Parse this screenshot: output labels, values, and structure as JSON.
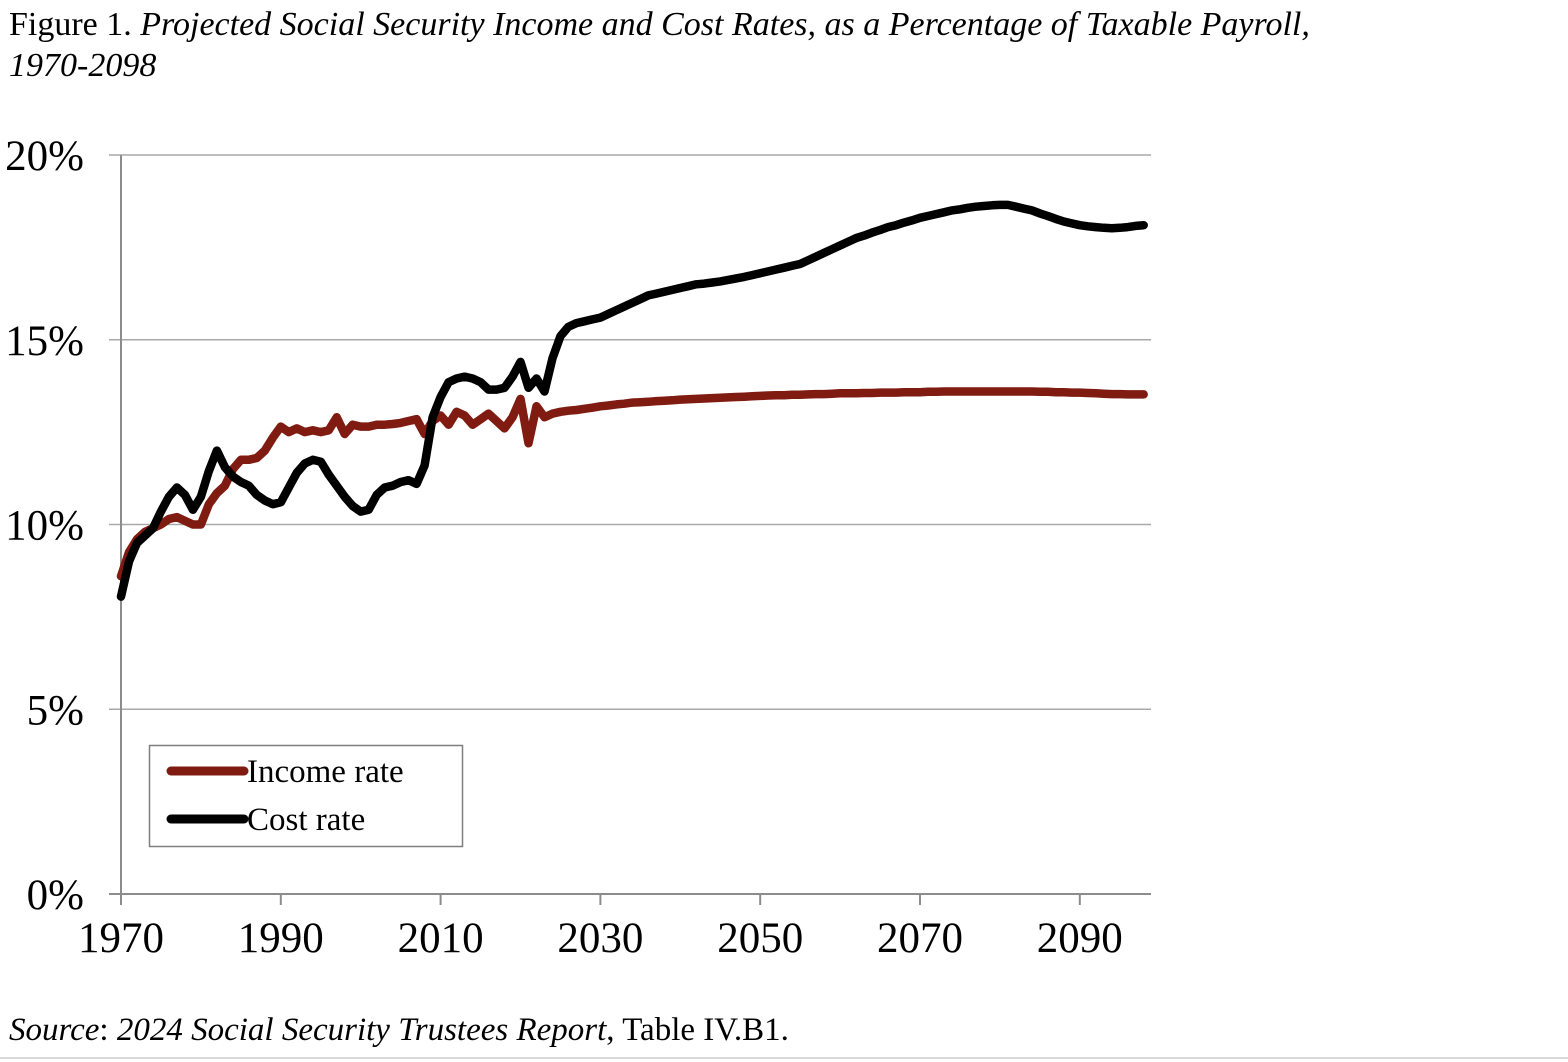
{
  "figure": {
    "title_prefix": "Figure 1. ",
    "title_main": "Projected Social Security Income and Cost Rates, as a Percentage of Taxable Payroll,",
    "title_line2": "1970-2098",
    "source_label": "Source",
    "source_colon": ": ",
    "source_publication": "2024 Social Security Trustees Report",
    "source_suffix": ", Table IV.B1."
  },
  "chart_data": {
    "type": "line",
    "title": "Projected Social Security Income and Cost Rates, as a Percentage of Taxable Payroll, 1970-2098",
    "xlabel": "",
    "ylabel": "",
    "xlim": [
      1970,
      2099
    ],
    "ylim": [
      0,
      20
    ],
    "grid": "horizontal",
    "legend_position": "lower-left",
    "x_ticks": [
      1970,
      1990,
      2010,
      2030,
      2050,
      2070,
      2090
    ],
    "y_ticks": [
      {
        "value": 0,
        "label": "0%"
      },
      {
        "value": 5,
        "label": "5%"
      },
      {
        "value": 10,
        "label": "10%"
      },
      {
        "value": 15,
        "label": "15%"
      },
      {
        "value": 20,
        "label": "20%"
      }
    ],
    "colors": {
      "grid": "#a9a9a9",
      "axis": "#8c8c8c",
      "legend_border": "#7f7f7f"
    },
    "years": [
      1970,
      1971,
      1972,
      1973,
      1974,
      1975,
      1976,
      1977,
      1978,
      1979,
      1980,
      1981,
      1982,
      1983,
      1984,
      1985,
      1986,
      1987,
      1988,
      1989,
      1990,
      1991,
      1992,
      1993,
      1994,
      1995,
      1996,
      1997,
      1998,
      1999,
      2000,
      2001,
      2002,
      2003,
      2004,
      2005,
      2006,
      2007,
      2008,
      2009,
      2010,
      2011,
      2012,
      2013,
      2014,
      2015,
      2016,
      2017,
      2018,
      2019,
      2020,
      2021,
      2022,
      2023,
      2024,
      2025,
      2026,
      2027,
      2028,
      2029,
      2030,
      2031,
      2032,
      2033,
      2034,
      2035,
      2036,
      2037,
      2038,
      2039,
      2040,
      2041,
      2042,
      2043,
      2044,
      2045,
      2046,
      2047,
      2048,
      2049,
      2050,
      2051,
      2052,
      2053,
      2054,
      2055,
      2056,
      2057,
      2058,
      2059,
      2060,
      2061,
      2062,
      2063,
      2064,
      2065,
      2066,
      2067,
      2068,
      2069,
      2070,
      2071,
      2072,
      2073,
      2074,
      2075,
      2076,
      2077,
      2078,
      2079,
      2080,
      2081,
      2082,
      2083,
      2084,
      2085,
      2086,
      2087,
      2088,
      2089,
      2090,
      2091,
      2092,
      2093,
      2094,
      2095,
      2096,
      2097,
      2098
    ],
    "series": [
      {
        "name": "Income rate",
        "color": "#801b11",
        "values": [
          8.6,
          9.25,
          9.6,
          9.8,
          9.9,
          10.0,
          10.15,
          10.2,
          10.1,
          10.0,
          10.0,
          10.55,
          10.85,
          11.05,
          11.5,
          11.75,
          11.75,
          11.8,
          12.0,
          12.35,
          12.65,
          12.5,
          12.6,
          12.5,
          12.55,
          12.5,
          12.55,
          12.9,
          12.45,
          12.7,
          12.65,
          12.65,
          12.7,
          12.7,
          12.72,
          12.75,
          12.8,
          12.85,
          12.45,
          12.8,
          12.95,
          12.7,
          13.05,
          12.95,
          12.7,
          12.85,
          13.0,
          12.8,
          12.6,
          12.9,
          13.4,
          12.2,
          13.2,
          12.9,
          13.0,
          13.05,
          13.08,
          13.1,
          13.13,
          13.16,
          13.2,
          13.22,
          13.25,
          13.27,
          13.3,
          13.31,
          13.32,
          13.34,
          13.35,
          13.36,
          13.38,
          13.39,
          13.4,
          13.41,
          13.42,
          13.43,
          13.44,
          13.45,
          13.46,
          13.47,
          13.48,
          13.49,
          13.5,
          13.5,
          13.51,
          13.51,
          13.52,
          13.53,
          13.53,
          13.54,
          13.55,
          13.55,
          13.55,
          13.56,
          13.56,
          13.57,
          13.57,
          13.57,
          13.58,
          13.58,
          13.58,
          13.59,
          13.59,
          13.6,
          13.6,
          13.6,
          13.6,
          13.6,
          13.6,
          13.6,
          13.6,
          13.6,
          13.6,
          13.6,
          13.6,
          13.59,
          13.59,
          13.58,
          13.58,
          13.57,
          13.57,
          13.56,
          13.55,
          13.54,
          13.53,
          13.53,
          13.52,
          13.52,
          13.52
        ]
      },
      {
        "name": "Cost rate",
        "color": "#000000",
        "values": [
          8.05,
          9.0,
          9.5,
          9.7,
          9.9,
          10.35,
          10.75,
          11.0,
          10.8,
          10.4,
          10.75,
          11.45,
          12.0,
          11.55,
          11.3,
          11.15,
          11.05,
          10.8,
          10.65,
          10.55,
          10.6,
          11.0,
          11.4,
          11.65,
          11.75,
          11.7,
          11.35,
          11.05,
          10.75,
          10.5,
          10.35,
          10.4,
          10.8,
          11.0,
          11.05,
          11.15,
          11.2,
          11.1,
          11.6,
          12.9,
          13.45,
          13.85,
          13.95,
          14.0,
          13.95,
          13.85,
          13.65,
          13.65,
          13.7,
          14.0,
          14.4,
          13.7,
          13.95,
          13.6,
          14.5,
          15.1,
          15.35,
          15.45,
          15.5,
          15.55,
          15.6,
          15.7,
          15.8,
          15.9,
          16.0,
          16.1,
          16.2,
          16.25,
          16.3,
          16.35,
          16.4,
          16.45,
          16.5,
          16.52,
          16.55,
          16.58,
          16.62,
          16.66,
          16.7,
          16.75,
          16.8,
          16.85,
          16.9,
          16.95,
          17.0,
          17.05,
          17.15,
          17.25,
          17.35,
          17.45,
          17.55,
          17.65,
          17.75,
          17.82,
          17.9,
          17.97,
          18.05,
          18.1,
          18.17,
          18.23,
          18.3,
          18.35,
          18.4,
          18.45,
          18.5,
          18.53,
          18.57,
          18.6,
          18.62,
          18.64,
          18.65,
          18.65,
          18.6,
          18.55,
          18.5,
          18.42,
          18.35,
          18.27,
          18.2,
          18.15,
          18.1,
          18.07,
          18.05,
          18.03,
          18.02,
          18.03,
          18.05,
          18.08,
          18.1
        ]
      }
    ]
  }
}
